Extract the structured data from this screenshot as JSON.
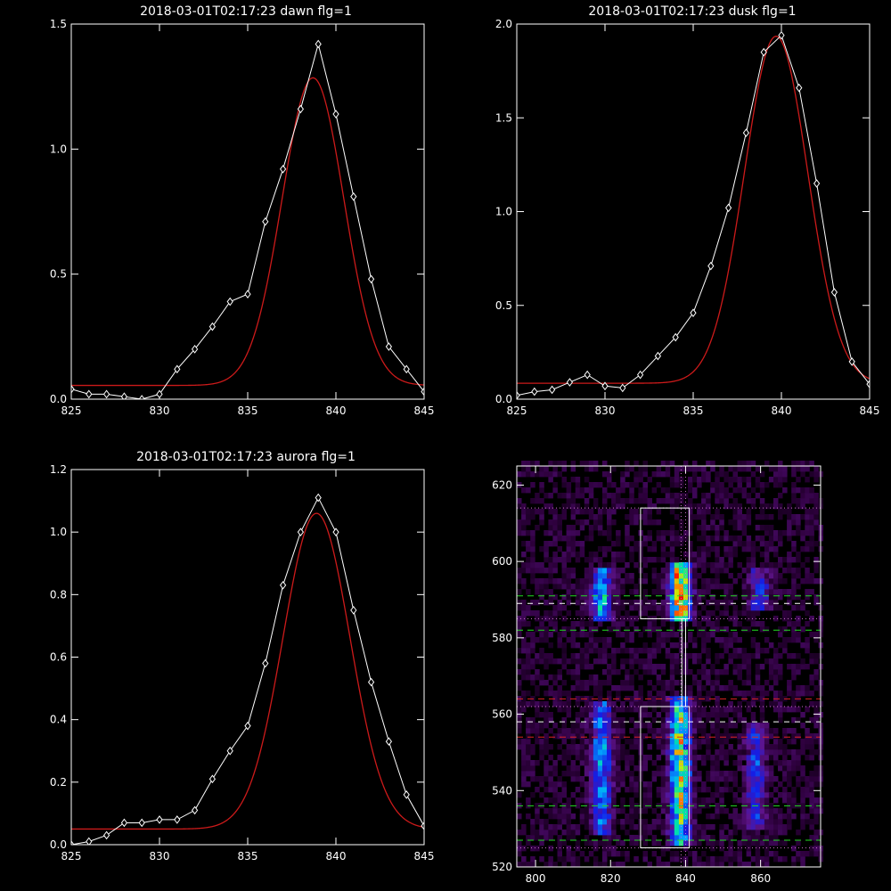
{
  "colors": {
    "background": "#000000",
    "data": "#ffffff",
    "fit": "#cc1a1a",
    "green_dash": "#22dd22",
    "red_dash": "#dd2222",
    "magenta_dot": "#d070d0",
    "box": "#ffffff"
  },
  "chart_data": [
    {
      "type": "line",
      "title": "2018-03-01T02:17:23 dawn flg=1",
      "xlim": [
        825,
        845
      ],
      "ylim": [
        0,
        1.5
      ],
      "xticks": [
        "825",
        "830",
        "835",
        "840",
        "845"
      ],
      "yticks": [
        "0.0",
        "0.5",
        "1.0",
        "1.5"
      ],
      "xtick_vals": [
        825,
        830,
        835,
        840,
        845
      ],
      "ytick_vals": [
        0,
        0.5,
        1.0,
        1.5
      ],
      "series": [
        {
          "role": "data",
          "x": [
            825,
            826,
            827,
            828,
            829,
            830,
            831,
            832,
            833,
            834,
            835,
            836,
            837,
            838,
            839,
            840,
            841,
            842,
            843,
            844,
            845
          ],
          "y": [
            0.04,
            0.02,
            0.02,
            0.01,
            0.0,
            0.02,
            0.12,
            0.2,
            0.29,
            0.39,
            0.42,
            0.71,
            0.92,
            1.16,
            1.42,
            1.14,
            0.81,
            0.48,
            0.21,
            0.12,
            0.03
          ]
        },
        {
          "role": "fit",
          "gauss": {
            "amp": 1.23,
            "center": 38.7,
            "sigma": 1.75,
            "base": 0.055
          }
        }
      ]
    },
    {
      "type": "line",
      "title": "2018-03-01T02:17:23 dusk flg=1",
      "xlim": [
        825,
        845
      ],
      "ylim": [
        0,
        2.0
      ],
      "xticks": [
        "825",
        "830",
        "835",
        "840",
        "845"
      ],
      "yticks": [
        "0.0",
        "0.5",
        "1.0",
        "1.5",
        "2.0"
      ],
      "xtick_vals": [
        825,
        830,
        835,
        840,
        845
      ],
      "ytick_vals": [
        0,
        0.5,
        1.0,
        1.5,
        2.0
      ],
      "series": [
        {
          "role": "data",
          "x": [
            825,
            826,
            827,
            828,
            829,
            830,
            831,
            832,
            833,
            834,
            835,
            836,
            837,
            838,
            839,
            840,
            841,
            842,
            843,
            844,
            845
          ],
          "y": [
            0.02,
            0.04,
            0.05,
            0.09,
            0.13,
            0.07,
            0.06,
            0.13,
            0.23,
            0.33,
            0.46,
            0.71,
            1.02,
            1.42,
            1.85,
            1.94,
            1.66,
            1.15,
            0.57,
            0.2,
            0.08
          ]
        },
        {
          "role": "fit",
          "gauss": {
            "amp": 1.85,
            "center": 39.7,
            "sigma": 1.8,
            "base": 0.085
          }
        }
      ]
    },
    {
      "type": "line",
      "title": "2018-03-01T02:17:23 aurora flg=1",
      "xlim": [
        825,
        845
      ],
      "ylim": [
        0,
        1.2
      ],
      "xticks": [
        "825",
        "830",
        "835",
        "840",
        "845"
      ],
      "yticks": [
        "0.0",
        "0.2",
        "0.4",
        "0.6",
        "0.8",
        "1.0",
        "1.2"
      ],
      "xtick_vals": [
        825,
        830,
        835,
        840,
        845
      ],
      "ytick_vals": [
        0,
        0.2,
        0.4,
        0.6,
        0.8,
        1.0,
        1.2
      ],
      "series": [
        {
          "role": "data",
          "x": [
            825,
            826,
            827,
            828,
            829,
            830,
            831,
            832,
            833,
            834,
            835,
            836,
            837,
            838,
            839,
            840,
            841,
            842,
            843,
            844,
            845
          ],
          "y": [
            0.0,
            0.01,
            0.03,
            0.07,
            0.07,
            0.08,
            0.08,
            0.11,
            0.21,
            0.3,
            0.38,
            0.58,
            0.83,
            1.0,
            1.11,
            1.0,
            0.75,
            0.52,
            0.33,
            0.16,
            0.06
          ]
        },
        {
          "role": "fit",
          "gauss": {
            "amp": 1.01,
            "center": 38.9,
            "sigma": 1.9,
            "base": 0.05
          }
        }
      ]
    },
    {
      "type": "heatmap",
      "title": "",
      "xlim": [
        795,
        876
      ],
      "ylim": [
        520,
        625
      ],
      "xticks": [
        "800",
        "820",
        "840",
        "860"
      ],
      "yticks": [
        "520",
        "540",
        "560",
        "580",
        "600",
        "620"
      ],
      "xtick_vals": [
        800,
        820,
        840,
        860
      ],
      "ytick_vals": [
        520,
        540,
        560,
        580,
        600,
        620
      ],
      "emission_columns": [
        {
          "x": 817,
          "y": [
            584,
            596
          ],
          "peak": 0.55
        },
        {
          "x": 838,
          "y": [
            584,
            598
          ],
          "peak": 0.95
        },
        {
          "x": 859,
          "y": [
            587,
            596
          ],
          "peak": 0.35
        },
        {
          "x": 817,
          "y": [
            528,
            562
          ],
          "peak": 0.5
        },
        {
          "x": 838,
          "y": [
            526,
            563
          ],
          "peak": 0.8
        },
        {
          "x": 858,
          "y": [
            530,
            556
          ],
          "peak": 0.35
        }
      ],
      "overlays": {
        "boxes": [
          {
            "x": [
              828,
              841
            ],
            "y": [
              585,
              614
            ]
          },
          {
            "x": [
              828,
              841
            ],
            "y": [
              525,
              562
            ]
          }
        ],
        "connector": {
          "x": [
            839,
            840
          ],
          "y": [
            562,
            585
          ]
        },
        "hlines_green_dashed": [
          591,
          582,
          536,
          527
        ],
        "hlines_red_dashed": [
          564,
          554
        ],
        "hlines_white_dashed": [
          589,
          558
        ],
        "hlines_magenta_dotted": [
          614,
          585,
          562,
          525
        ],
        "vlines_magenta_dotted": [
          838.8,
          840
        ]
      }
    }
  ]
}
